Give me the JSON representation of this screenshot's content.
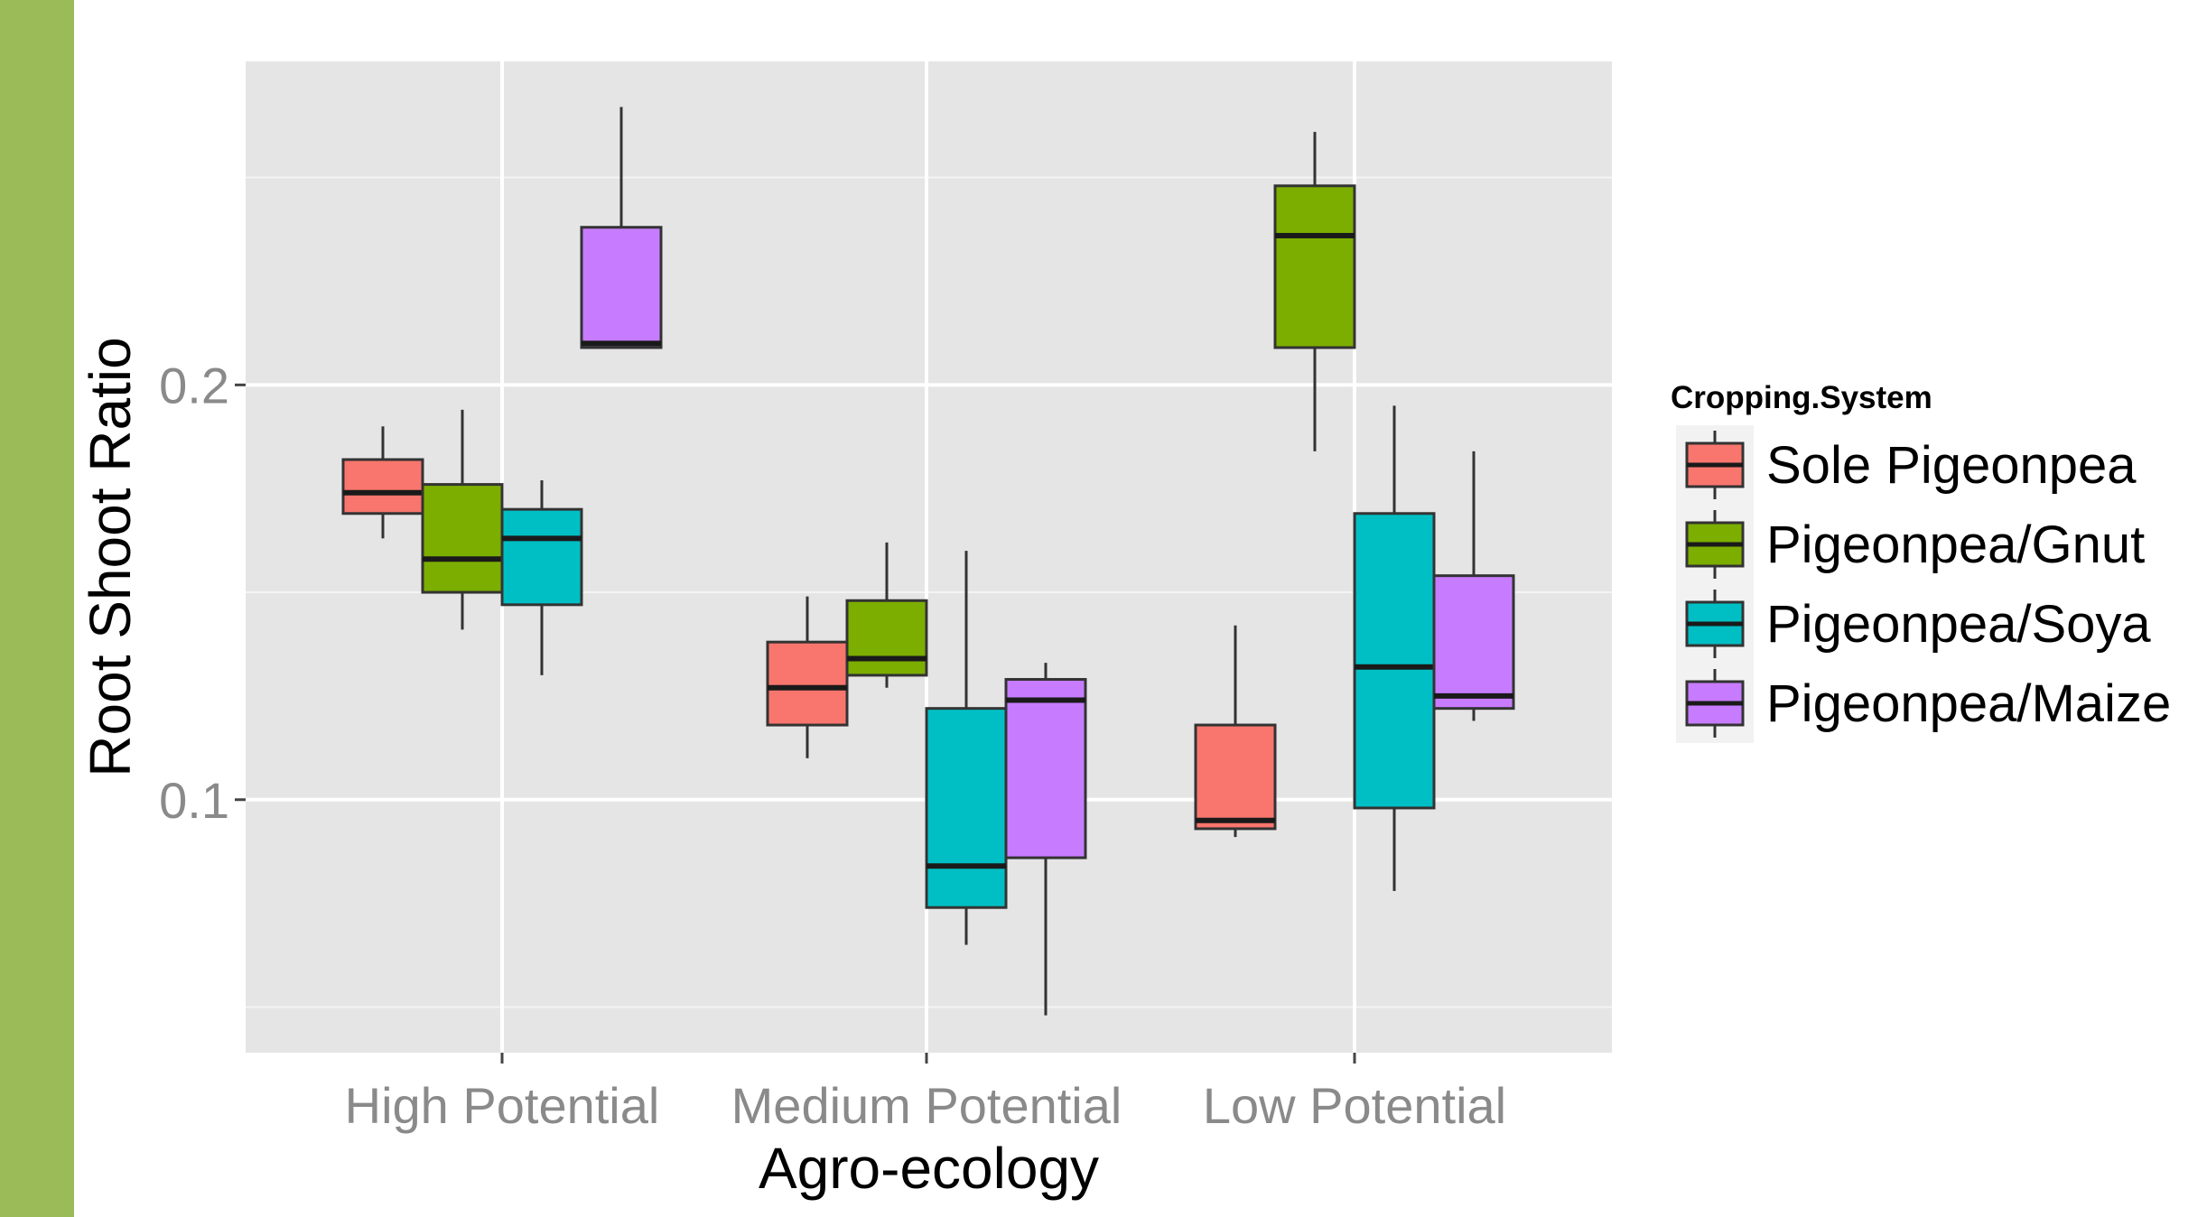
{
  "colors": {
    "side_bar": "#9bbb59",
    "panel": "#e5e5e5",
    "grid": "#ffffff"
  },
  "chart_data": {
    "type": "boxplot",
    "title": "",
    "xlabel": "Agro-ecology",
    "ylabel": "Root Shoot Ratio",
    "categories": [
      "High Potential",
      "Medium Potential",
      "Low Potential"
    ],
    "ylim": [
      0.039,
      0.278
    ],
    "yticks": [
      0.1,
      0.2
    ],
    "ytick_labels": [
      "0.1",
      "0.2"
    ],
    "grid": true,
    "legend": {
      "title": "Cropping.System",
      "position": "right"
    },
    "series": [
      {
        "name": "Sole Pigeonpea",
        "color": "#f8766d",
        "boxes": [
          {
            "category": "High Potential",
            "min": 0.163,
            "q1": 0.169,
            "median": 0.174,
            "q3": 0.182,
            "max": 0.19
          },
          {
            "category": "Medium Potential",
            "min": 0.11,
            "q1": 0.118,
            "median": 0.127,
            "q3": 0.138,
            "max": 0.149
          },
          {
            "category": "Low Potential",
            "min": 0.091,
            "q1": 0.093,
            "median": 0.095,
            "q3": 0.118,
            "max": 0.142
          }
        ]
      },
      {
        "name": "Pigeonpea/Gnut",
        "color": "#7cae00",
        "boxes": [
          {
            "category": "High Potential",
            "min": 0.141,
            "q1": 0.15,
            "median": 0.158,
            "q3": 0.176,
            "max": 0.194
          },
          {
            "category": "Medium Potential",
            "min": 0.127,
            "q1": 0.13,
            "median": 0.134,
            "q3": 0.148,
            "max": 0.162
          },
          {
            "category": "Low Potential",
            "min": 0.184,
            "q1": 0.209,
            "median": 0.236,
            "q3": 0.248,
            "max": 0.261
          }
        ]
      },
      {
        "name": "Pigeonpea/Soya",
        "color": "#00bfc4",
        "boxes": [
          {
            "category": "High Potential",
            "min": 0.13,
            "q1": 0.147,
            "median": 0.163,
            "q3": 0.17,
            "max": 0.177
          },
          {
            "category": "Medium Potential",
            "min": 0.065,
            "q1": 0.074,
            "median": 0.084,
            "q3": 0.122,
            "max": 0.16
          },
          {
            "category": "Low Potential",
            "min": 0.078,
            "q1": 0.098,
            "median": 0.132,
            "q3": 0.169,
            "max": 0.195
          }
        ]
      },
      {
        "name": "Pigeonpea/Maize",
        "color": "#c77cff",
        "boxes": [
          {
            "category": "High Potential",
            "min": 0.209,
            "q1": 0.209,
            "median": 0.21,
            "q3": 0.238,
            "max": 0.267
          },
          {
            "category": "Medium Potential",
            "min": 0.048,
            "q1": 0.086,
            "median": 0.124,
            "q3": 0.129,
            "max": 0.133
          },
          {
            "category": "Low Potential",
            "min": 0.119,
            "q1": 0.122,
            "median": 0.125,
            "q3": 0.154,
            "max": 0.184
          }
        ]
      }
    ]
  }
}
